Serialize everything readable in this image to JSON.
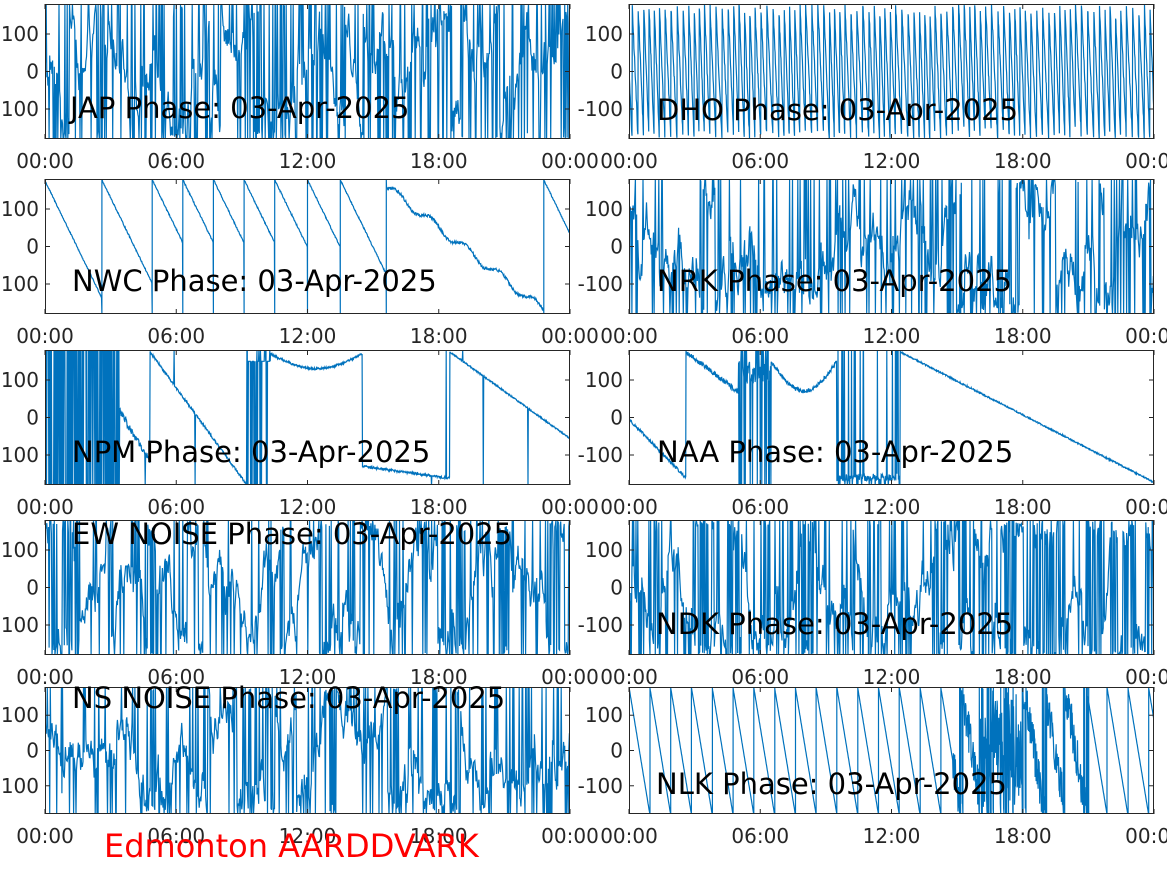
{
  "figure": {
    "footer": "Edmonton AARDDVARK",
    "line_color": "#0072bd",
    "footer_color": "#ff0000"
  },
  "chart_data": [
    {
      "type": "line",
      "title": "JAP Phase: 03-Apr-2025",
      "x": {
        "ticks": [
          "00:00",
          "06:00",
          "12:00",
          "18:00",
          "00:00"
        ],
        "range_hours": [
          0,
          24
        ]
      },
      "y": {
        "ticks": [
          100,
          0,
          -100
        ],
        "tick_labels": [
          "100",
          "0",
          "-100"
        ],
        "ylim": [
          -180,
          180
        ]
      },
      "grid": false,
      "series": [
        {
          "pattern": "dense-noise",
          "density": 0.9
        }
      ]
    },
    {
      "type": "line",
      "title": "DHO Phase: 03-Apr-2025",
      "x": {
        "ticks": [
          "00:00",
          "06:00",
          "12:00",
          "18:00",
          "00:00"
        ],
        "range_hours": [
          0,
          24
        ]
      },
      "y": {
        "ticks": [
          100,
          0,
          -100
        ],
        "tick_labels": [
          "100",
          "0",
          "-100"
        ],
        "ylim": [
          -180,
          180
        ]
      },
      "grid": false,
      "series": [
        {
          "pattern": "dense-fast-wraps",
          "density": 1.0
        }
      ]
    },
    {
      "type": "line",
      "title": "NWC Phase: 03-Apr-2025",
      "x": {
        "ticks": [
          "00:00",
          "06:00",
          "12:00",
          "18:00",
          "00:00"
        ],
        "range_hours": [
          0,
          24
        ]
      },
      "y": {
        "ticks": [
          100,
          0,
          -100
        ],
        "tick_labels": [
          "100",
          "0",
          "-100"
        ],
        "ylim": [
          -180,
          180
        ]
      },
      "grid": false,
      "series": [
        {
          "pattern": "sawtooth-down",
          "wrap_hours": [
            2.6,
            4.9,
            6.3,
            7.7,
            9.1,
            10.5,
            12.0,
            13.5,
            15.6,
            22.8
          ]
        }
      ]
    },
    {
      "type": "line",
      "title": "NRK Phase: 03-Apr-2025",
      "x": {
        "ticks": [
          "00:00",
          "06:00",
          "12:00",
          "18:00",
          "00:00"
        ],
        "range_hours": [
          0,
          24
        ]
      },
      "y": {
        "ticks": [
          100,
          0,
          -100
        ],
        "tick_labels": [
          "100",
          "0",
          "-100"
        ],
        "ylim": [
          -180,
          180
        ]
      },
      "grid": false,
      "series": [
        {
          "pattern": "dense-noise",
          "density": 0.75
        }
      ]
    },
    {
      "type": "line",
      "title": "NPM Phase: 03-Apr-2025",
      "x": {
        "ticks": [
          "00:00",
          "06:00",
          "12:00",
          "18:00",
          "00:00"
        ],
        "range_hours": [
          0,
          24
        ]
      },
      "y": {
        "ticks": [
          100,
          0,
          -100
        ],
        "tick_labels": [
          "100",
          "0",
          "-100"
        ],
        "ylim": [
          -180,
          180
        ]
      },
      "grid": false,
      "series": [
        {
          "pattern": "npm"
        }
      ]
    },
    {
      "type": "line",
      "title": "NAA Phase: 03-Apr-2025",
      "x": {
        "ticks": [
          "00:00",
          "06:00",
          "12:00",
          "18:00",
          "00:00"
        ],
        "range_hours": [
          0,
          24
        ]
      },
      "y": {
        "ticks": [
          100,
          0,
          -100
        ],
        "tick_labels": [
          "100",
          "0",
          "-100"
        ],
        "ylim": [
          -180,
          180
        ]
      },
      "grid": false,
      "series": [
        {
          "pattern": "naa"
        }
      ]
    },
    {
      "type": "line",
      "title": "EW NOISE Phase: 03-Apr-2025",
      "x": {
        "ticks": [
          "00:00",
          "06:00",
          "12:00",
          "18:00",
          "00:00"
        ],
        "range_hours": [
          0,
          24
        ]
      },
      "y": {
        "ticks": [
          100,
          0,
          -100
        ],
        "tick_labels": [
          "100",
          "0",
          "-100"
        ],
        "ylim": [
          -180,
          180
        ]
      },
      "grid": false,
      "series": [
        {
          "pattern": "dense-noise",
          "density": 0.6
        }
      ]
    },
    {
      "type": "line",
      "title": "NDK Phase: 03-Apr-2025",
      "x": {
        "ticks": [
          "00:00",
          "06:00",
          "12:00",
          "18:00",
          "00:00"
        ],
        "range_hours": [
          0,
          24
        ]
      },
      "y": {
        "ticks": [
          100,
          0,
          -100
        ],
        "tick_labels": [
          "100",
          "0",
          "-100"
        ],
        "ylim": [
          -180,
          180
        ]
      },
      "grid": false,
      "series": [
        {
          "pattern": "dense-noise",
          "density": 0.8
        }
      ]
    },
    {
      "type": "line",
      "title": "NS NOISE Phase: 03-Apr-2025",
      "x": {
        "ticks": [
          "00:00",
          "06:00",
          "12:00",
          "18:00",
          "00:00"
        ],
        "range_hours": [
          0,
          24
        ]
      },
      "y": {
        "ticks": [
          100,
          0,
          -100
        ],
        "tick_labels": [
          "100",
          "0",
          "-100"
        ],
        "ylim": [
          -180,
          180
        ]
      },
      "grid": false,
      "series": [
        {
          "pattern": "dense-noise",
          "density": 0.6
        }
      ]
    },
    {
      "type": "line",
      "title": "NLK Phase: 03-Apr-2025",
      "x": {
        "ticks": [
          "00:00",
          "06:00",
          "12:00",
          "18:00",
          "00:00"
        ],
        "range_hours": [
          0,
          24
        ]
      },
      "y": {
        "ticks": [
          100,
          0,
          -100
        ],
        "tick_labels": [
          "100",
          "0",
          "-100"
        ],
        "ylim": [
          -180,
          180
        ]
      },
      "grid": false,
      "series": [
        {
          "pattern": "sawtooth-down-noisy",
          "period_hours": 0.95
        }
      ]
    }
  ]
}
